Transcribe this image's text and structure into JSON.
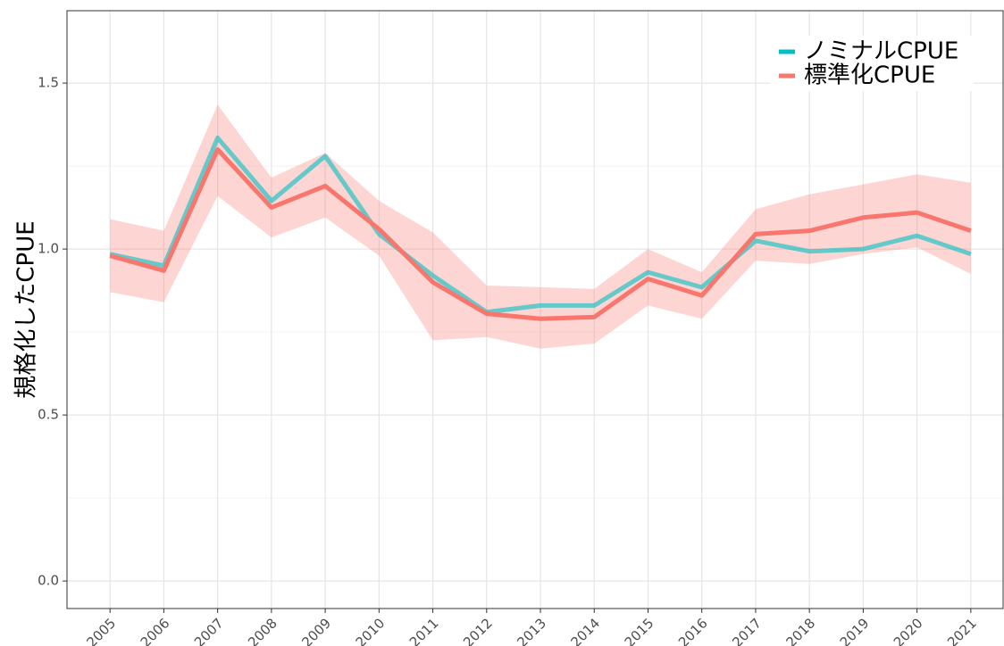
{
  "chart_data": {
    "type": "line",
    "y_label": "規格化したCPUE",
    "x": [
      2005,
      2006,
      2007,
      2008,
      2009,
      2010,
      2011,
      2012,
      2013,
      2014,
      2015,
      2016,
      2017,
      2018,
      2019,
      2020,
      2021
    ],
    "series": [
      {
        "name": "ノミナルCPUE",
        "color": "#00bfc4",
        "values": [
          0.985,
          0.95,
          1.335,
          1.145,
          1.28,
          1.045,
          0.92,
          0.81,
          0.83,
          0.83,
          0.93,
          0.885,
          1.025,
          0.993,
          1.0,
          1.04,
          0.985
        ]
      },
      {
        "name": "標準化CPUE",
        "color": "#f8766d",
        "values": [
          0.98,
          0.935,
          1.3,
          1.125,
          1.19,
          1.06,
          0.9,
          0.805,
          0.79,
          0.795,
          0.91,
          0.86,
          1.045,
          1.055,
          1.095,
          1.11,
          1.055
        ],
        "lower": [
          0.87,
          0.84,
          1.16,
          1.035,
          1.095,
          0.98,
          0.725,
          0.735,
          0.7,
          0.715,
          0.83,
          0.79,
          0.965,
          0.955,
          0.985,
          1.005,
          0.925
        ],
        "upper": [
          1.09,
          1.055,
          1.435,
          1.215,
          1.29,
          1.145,
          1.05,
          0.89,
          0.885,
          0.88,
          1.0,
          0.93,
          1.12,
          1.165,
          1.195,
          1.225,
          1.2
        ]
      }
    ],
    "xlim": [
      2004.2,
      2021.6
    ],
    "xticks": [
      2005,
      2006,
      2007,
      2008,
      2009,
      2010,
      2011,
      2012,
      2013,
      2014,
      2015,
      2016,
      2017,
      2018,
      2019,
      2020,
      2021
    ],
    "ylim": [
      -0.083,
      1.718
    ],
    "yticks": [
      {
        "value": 0,
        "label": "0.0"
      },
      0.5,
      {
        "value": 1,
        "label": "1.0"
      },
      1.5
    ],
    "grid": true,
    "legend": "top-right"
  }
}
